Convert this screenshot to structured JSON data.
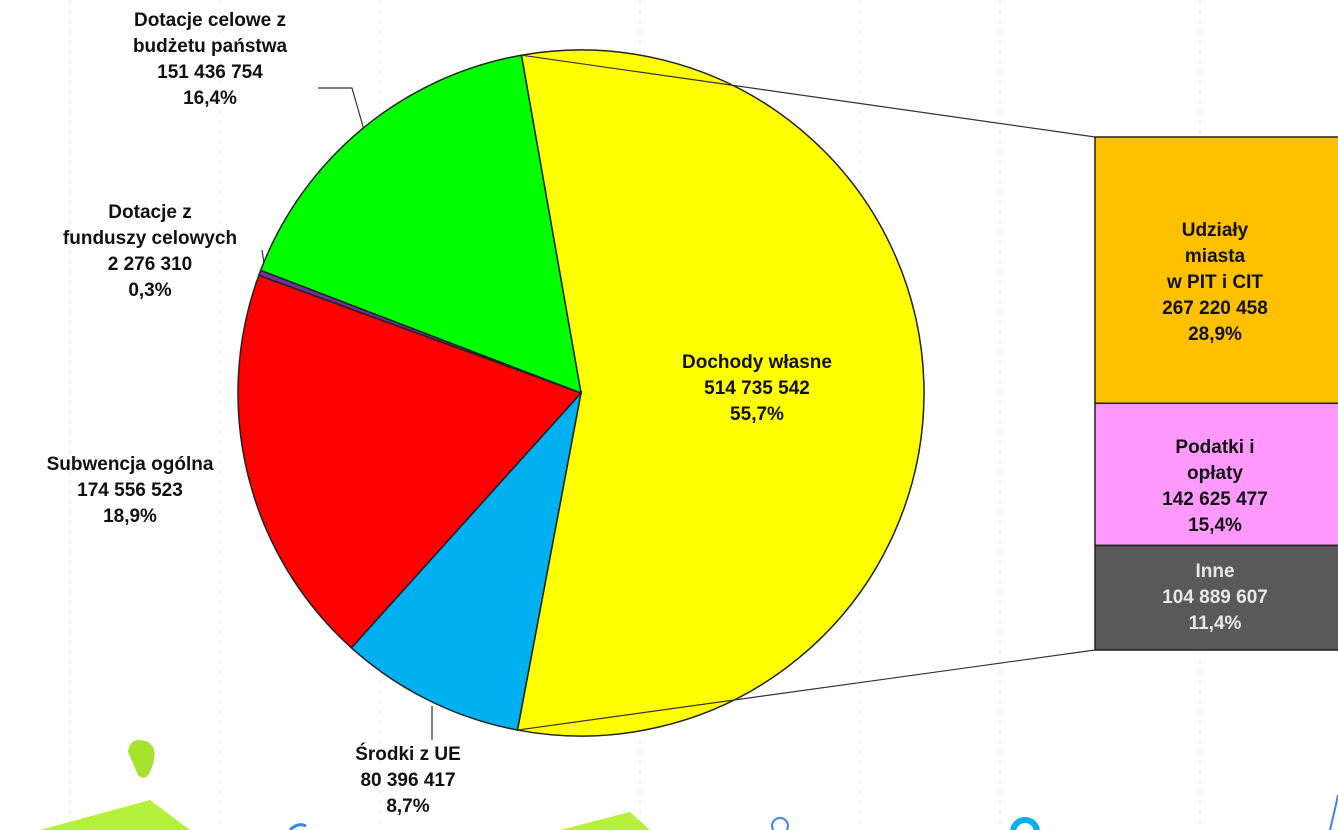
{
  "chart_data": {
    "type": "bar-of-pie",
    "pie": {
      "categories": [
        "Dochody własne",
        "Środki z UE",
        "Subwencja ogólna",
        "Dotacje z\nfunduszy celowych",
        "Dotacje celowe z\nbudżetu państwa"
      ],
      "values": [
        514735542,
        80396417,
        174556523,
        2276310,
        151436754
      ],
      "value_labels": [
        "514 735 542",
        "80 396 417",
        "174 556 523",
        "2 276 310",
        "151 436 754"
      ],
      "percents": [
        55.7,
        8.7,
        18.9,
        0.3,
        16.4
      ],
      "percent_labels": [
        "55,7%",
        "8,7%",
        "18,9%",
        "0,3%",
        "16,4%"
      ],
      "colors": [
        "#ffff00",
        "#00b0f0",
        "#ff0000",
        "#7030a0",
        "#00ff00"
      ]
    },
    "bar": {
      "categories": [
        "Udziały miasta\nw PIT i CIT",
        "Podatki i opłaty",
        "Inne"
      ],
      "values": [
        267220458,
        142625477,
        104889607
      ],
      "value_labels": [
        "267 220 458",
        "142 625 477",
        "104 889 607"
      ],
      "percents": [
        28.9,
        15.4,
        11.4
      ],
      "percent_labels": [
        "28,9%",
        "15,4%",
        "11,4%"
      ],
      "colors": [
        "#ffc000",
        "#ff99ff",
        "#595959"
      ]
    }
  }
}
